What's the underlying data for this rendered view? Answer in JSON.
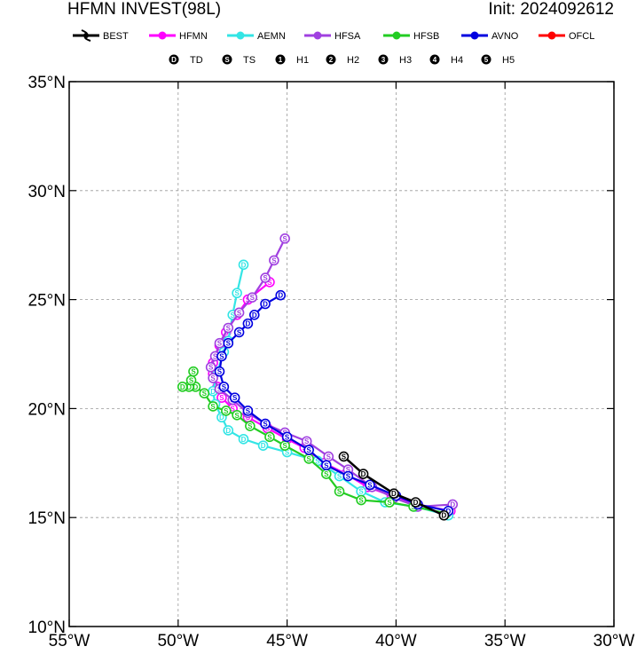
{
  "title_left": "HFMN INVEST(98L)",
  "title_right": "Init: 2024092612",
  "legend_models": [
    {
      "name": "BEST",
      "color": "#000000"
    },
    {
      "name": "HFMN",
      "color": "#ff00ff"
    },
    {
      "name": "AEMN",
      "color": "#33e5e5"
    },
    {
      "name": "HFSA",
      "color": "#a040e0"
    },
    {
      "name": "HFSB",
      "color": "#22cc22"
    },
    {
      "name": "AVNO",
      "color": "#0000e0"
    },
    {
      "name": "OFCL",
      "color": "#ff0000"
    }
  ],
  "legend_intensity": [
    {
      "symbol": "D",
      "label": "TD"
    },
    {
      "symbol": "S",
      "label": "TS"
    },
    {
      "symbol": "1",
      "label": "H1"
    },
    {
      "symbol": "2",
      "label": "H2"
    },
    {
      "symbol": "3",
      "label": "H3"
    },
    {
      "symbol": "4",
      "label": "H4"
    },
    {
      "symbol": "5",
      "label": "H5"
    }
  ],
  "chart_data": {
    "type": "scatter",
    "subtype": "track-map",
    "xlim": [
      -55,
      -30
    ],
    "ylim": [
      10,
      35
    ],
    "xticks": [
      -55,
      -50,
      -45,
      -40,
      -35,
      -30
    ],
    "yticks": [
      10,
      15,
      20,
      25,
      30,
      35
    ],
    "xtick_labels": [
      "55°W",
      "50°W",
      "45°W",
      "40°W",
      "35°W",
      "30°W"
    ],
    "ytick_labels": [
      "10°N",
      "15°N",
      "20°N",
      "25°N",
      "30°N",
      "35°N"
    ],
    "grid": true,
    "series": [
      {
        "name": "BEST",
        "color": "#000000",
        "points": [
          {
            "lon": -37.8,
            "lat": 15.1,
            "s": "D"
          },
          {
            "lon": -39.1,
            "lat": 15.7,
            "s": "D"
          },
          {
            "lon": -40.1,
            "lat": 16.1,
            "s": "D"
          },
          {
            "lon": -41.5,
            "lat": 17.0,
            "s": "D"
          },
          {
            "lon": -42.4,
            "lat": 17.8,
            "s": "S"
          }
        ]
      },
      {
        "name": "HFMN",
        "color": "#ff00ff",
        "points": [
          {
            "lon": -37.5,
            "lat": 15.3,
            "s": "D"
          },
          {
            "lon": -39.0,
            "lat": 15.6,
            "s": "S"
          },
          {
            "lon": -40.2,
            "lat": 16.0,
            "s": "S"
          },
          {
            "lon": -41.3,
            "lat": 16.4,
            "s": "S"
          },
          {
            "lon": -42.3,
            "lat": 17.0,
            "s": "S"
          },
          {
            "lon": -43.3,
            "lat": 17.5,
            "s": "S"
          },
          {
            "lon": -44.2,
            "lat": 18.2,
            "s": "S"
          },
          {
            "lon": -45.0,
            "lat": 18.6,
            "s": "S"
          },
          {
            "lon": -45.9,
            "lat": 19.1,
            "s": "S"
          },
          {
            "lon": -46.8,
            "lat": 19.6,
            "s": "S"
          },
          {
            "lon": -47.5,
            "lat": 20.0,
            "s": "S"
          },
          {
            "lon": -48.0,
            "lat": 20.5,
            "s": "S"
          },
          {
            "lon": -48.2,
            "lat": 21.0,
            "s": "S"
          },
          {
            "lon": -48.4,
            "lat": 21.6,
            "s": "S"
          },
          {
            "lon": -48.4,
            "lat": 22.1,
            "s": "S"
          },
          {
            "lon": -48.1,
            "lat": 22.9,
            "s": "S"
          },
          {
            "lon": -47.8,
            "lat": 23.5,
            "s": "S"
          },
          {
            "lon": -47.3,
            "lat": 24.3,
            "s": "S"
          },
          {
            "lon": -46.8,
            "lat": 25.0,
            "s": "S"
          },
          {
            "lon": -45.8,
            "lat": 25.8,
            "s": "S"
          }
        ]
      },
      {
        "name": "AEMN",
        "color": "#33e5e5",
        "points": [
          {
            "lon": -37.6,
            "lat": 15.1,
            "s": "D"
          },
          {
            "lon": -39.1,
            "lat": 15.5,
            "s": "S"
          },
          {
            "lon": -40.5,
            "lat": 15.7,
            "s": "S"
          },
          {
            "lon": -41.6,
            "lat": 16.2,
            "s": "S"
          },
          {
            "lon": -42.6,
            "lat": 16.9,
            "s": "S"
          },
          {
            "lon": -43.6,
            "lat": 17.6,
            "s": "S"
          },
          {
            "lon": -45.0,
            "lat": 18.0,
            "s": "S"
          },
          {
            "lon": -46.1,
            "lat": 18.3,
            "s": "D"
          },
          {
            "lon": -47.0,
            "lat": 18.6,
            "s": "D"
          },
          {
            "lon": -47.7,
            "lat": 19.0,
            "s": "D"
          },
          {
            "lon": -48.0,
            "lat": 19.6,
            "s": "D"
          },
          {
            "lon": -48.3,
            "lat": 20.2,
            "s": "D"
          },
          {
            "lon": -48.4,
            "lat": 20.8,
            "s": "D"
          },
          {
            "lon": -48.2,
            "lat": 21.7,
            "s": "S"
          },
          {
            "lon": -47.9,
            "lat": 22.6,
            "s": "S"
          },
          {
            "lon": -47.7,
            "lat": 23.1,
            "s": "S"
          },
          {
            "lon": -47.5,
            "lat": 24.3,
            "s": "S"
          },
          {
            "lon": -47.3,
            "lat": 25.3,
            "s": "S"
          },
          {
            "lon": -47.0,
            "lat": 26.6,
            "s": "D"
          }
        ]
      },
      {
        "name": "HFSA",
        "color": "#a040e0",
        "points": [
          {
            "lon": -37.4,
            "lat": 15.6,
            "s": "D"
          },
          {
            "lon": -39.0,
            "lat": 15.5,
            "s": "S"
          },
          {
            "lon": -40.1,
            "lat": 15.9,
            "s": "S"
          },
          {
            "lon": -41.1,
            "lat": 16.4,
            "s": "S"
          },
          {
            "lon": -42.2,
            "lat": 17.2,
            "s": "S"
          },
          {
            "lon": -43.1,
            "lat": 17.8,
            "s": "S"
          },
          {
            "lon": -44.1,
            "lat": 18.5,
            "s": "S"
          },
          {
            "lon": -45.1,
            "lat": 18.9,
            "s": "S"
          },
          {
            "lon": -46.0,
            "lat": 19.3,
            "s": "S"
          },
          {
            "lon": -46.8,
            "lat": 19.8,
            "s": "S"
          },
          {
            "lon": -47.5,
            "lat": 20.4,
            "s": "S"
          },
          {
            "lon": -48.1,
            "lat": 20.9,
            "s": "S"
          },
          {
            "lon": -48.4,
            "lat": 21.4,
            "s": "S"
          },
          {
            "lon": -48.5,
            "lat": 21.9,
            "s": "S"
          },
          {
            "lon": -48.3,
            "lat": 22.4,
            "s": "S"
          },
          {
            "lon": -48.1,
            "lat": 23.0,
            "s": "S"
          },
          {
            "lon": -47.7,
            "lat": 23.7,
            "s": "S"
          },
          {
            "lon": -47.2,
            "lat": 24.4,
            "s": "S"
          },
          {
            "lon": -46.6,
            "lat": 25.1,
            "s": "S"
          },
          {
            "lon": -46.0,
            "lat": 26.0,
            "s": "S"
          },
          {
            "lon": -45.6,
            "lat": 26.8,
            "s": "S"
          },
          {
            "lon": -45.1,
            "lat": 27.8,
            "s": "S"
          }
        ]
      },
      {
        "name": "HFSB",
        "color": "#22cc22",
        "points": [
          {
            "lon": -37.7,
            "lat": 15.2,
            "s": "D"
          },
          {
            "lon": -39.2,
            "lat": 15.5,
            "s": "S"
          },
          {
            "lon": -40.3,
            "lat": 15.7,
            "s": "S"
          },
          {
            "lon": -41.6,
            "lat": 15.8,
            "s": "S"
          },
          {
            "lon": -42.6,
            "lat": 16.2,
            "s": "S"
          },
          {
            "lon": -43.2,
            "lat": 17.0,
            "s": "S"
          },
          {
            "lon": -44.0,
            "lat": 17.7,
            "s": "S"
          },
          {
            "lon": -45.1,
            "lat": 18.3,
            "s": "S"
          },
          {
            "lon": -45.8,
            "lat": 18.7,
            "s": "S"
          },
          {
            "lon": -46.7,
            "lat": 19.2,
            "s": "S"
          },
          {
            "lon": -47.3,
            "lat": 19.7,
            "s": "S"
          },
          {
            "lon": -47.8,
            "lat": 19.9,
            "s": "S"
          },
          {
            "lon": -48.4,
            "lat": 20.1,
            "s": "S"
          },
          {
            "lon": -48.8,
            "lat": 20.7,
            "s": "S"
          },
          {
            "lon": -49.2,
            "lat": 21.0,
            "s": "D"
          },
          {
            "lon": -49.5,
            "lat": 21.0,
            "s": "D"
          },
          {
            "lon": -49.8,
            "lat": 21.0,
            "s": "D"
          },
          {
            "lon": -49.4,
            "lat": 21.3,
            "s": "S"
          },
          {
            "lon": -49.3,
            "lat": 21.7,
            "s": "S"
          }
        ]
      },
      {
        "name": "AVNO",
        "color": "#0000e0",
        "points": [
          {
            "lon": -37.6,
            "lat": 15.3,
            "s": "D"
          },
          {
            "lon": -39.0,
            "lat": 15.6,
            "s": "S"
          },
          {
            "lon": -40.0,
            "lat": 16.0,
            "s": "S"
          },
          {
            "lon": -41.2,
            "lat": 16.5,
            "s": "S"
          },
          {
            "lon": -42.2,
            "lat": 16.9,
            "s": "S"
          },
          {
            "lon": -43.2,
            "lat": 17.4,
            "s": "S"
          },
          {
            "lon": -44.0,
            "lat": 18.1,
            "s": "S"
          },
          {
            "lon": -45.0,
            "lat": 18.7,
            "s": "S"
          },
          {
            "lon": -46.0,
            "lat": 19.3,
            "s": "S"
          },
          {
            "lon": -46.8,
            "lat": 19.9,
            "s": "S"
          },
          {
            "lon": -47.4,
            "lat": 20.5,
            "s": "S"
          },
          {
            "lon": -47.9,
            "lat": 21.0,
            "s": "S"
          },
          {
            "lon": -48.1,
            "lat": 21.7,
            "s": "S"
          },
          {
            "lon": -48.0,
            "lat": 22.4,
            "s": "S"
          },
          {
            "lon": -47.7,
            "lat": 23.0,
            "s": "S"
          },
          {
            "lon": -47.2,
            "lat": 23.5,
            "s": "S"
          },
          {
            "lon": -46.8,
            "lat": 23.9,
            "s": "D"
          },
          {
            "lon": -46.5,
            "lat": 24.3,
            "s": "D"
          },
          {
            "lon": -46.0,
            "lat": 24.8,
            "s": "D"
          },
          {
            "lon": -45.3,
            "lat": 25.2,
            "s": "D"
          }
        ]
      }
    ]
  }
}
